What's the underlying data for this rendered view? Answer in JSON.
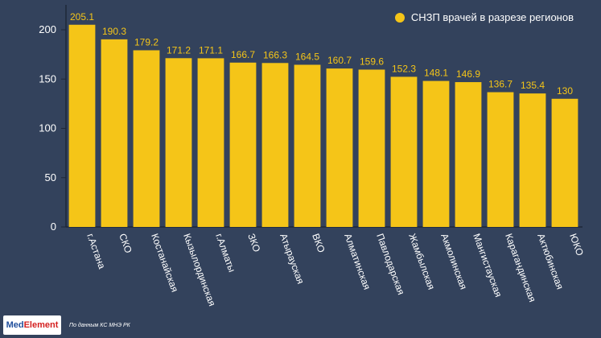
{
  "chart_data": {
    "type": "bar",
    "categories": [
      "г.Астана",
      "СКО",
      "Костанайская",
      "Кызылординская",
      "г.Алматы",
      "ЗКО",
      "Атырауская",
      "ВКО",
      "Алматинская",
      "Павлодарская",
      "Жамбылская",
      "Акмолинская",
      "Мангистауская",
      "Карагандинская",
      "Актюбинская",
      "ЮКО"
    ],
    "series": [
      {
        "name": "СНЗП врачей в разрезе регионов",
        "values": [
          205.1,
          190.3,
          179.2,
          171.2,
          171.1,
          166.7,
          166.3,
          164.5,
          160.7,
          159.6,
          152.3,
          148.1,
          146.9,
          136.7,
          135.4,
          130
        ]
      }
    ],
    "value_labels": [
      "205.1",
      "190.3",
      "179.2",
      "171.2",
      "171.1",
      "166.7",
      "166.3",
      "164.5",
      "160.7",
      "159.6",
      "152.3",
      "148.1",
      "146.9",
      "136.7",
      "135.4",
      "130"
    ],
    "yticks": [
      "0",
      "50",
      "100",
      "150",
      "200"
    ],
    "ylim": [
      0,
      210
    ],
    "grid": false,
    "legend_position": "top-right",
    "colors": {
      "bar": "#f5c518",
      "background": "#33425c",
      "text": "#ffffff"
    }
  },
  "legend": {
    "label": "СНЗП врачей в разрезе регионов"
  },
  "footer": {
    "logo_part1": "Med",
    "logo_part2": "Element",
    "source": "По данным КС МНЭ РК"
  }
}
